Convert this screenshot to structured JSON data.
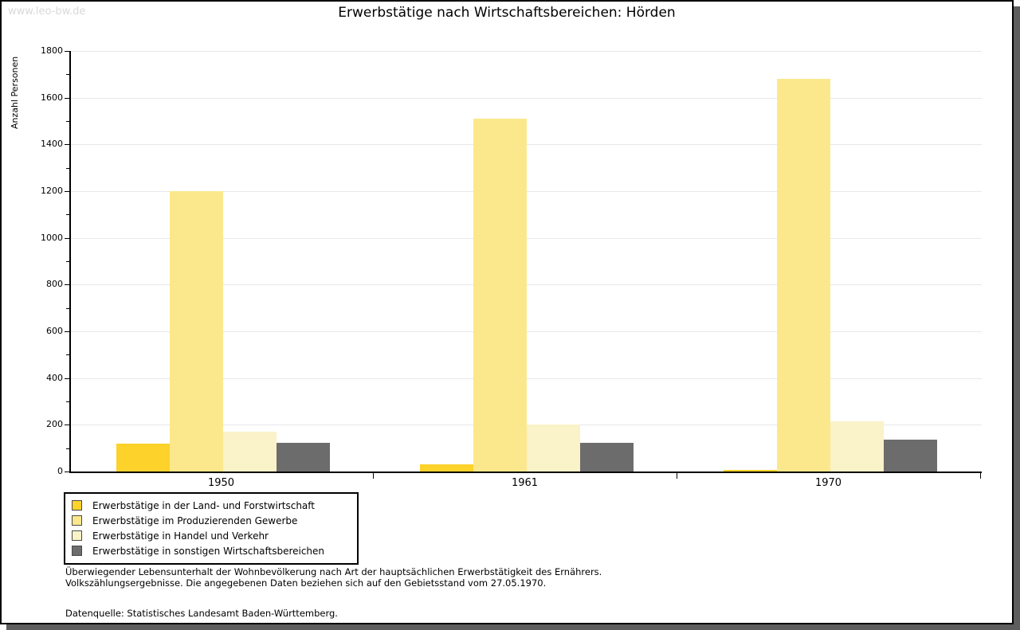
{
  "watermark": "www.leo-bw.de",
  "title": "Erwerbstätige nach Wirtschaftsbereichen: Hörden",
  "chart_data": {
    "type": "bar",
    "title": "Erwerbstätige nach Wirtschaftsbereichen: Hörden",
    "xlabel": "",
    "ylabel": "Anzahl Personen",
    "categories": [
      "1950",
      "1961",
      "1970"
    ],
    "series": [
      {
        "name": "Erwerbstätige in der Land- und Forstwirtschaft",
        "color": "#fcd22b",
        "values": [
          120,
          30,
          7
        ]
      },
      {
        "name": "Erwerbstätige im Produzierenden Gewerbe",
        "color": "#fce88c",
        "values": [
          1200,
          1510,
          1680
        ]
      },
      {
        "name": "Erwerbstätige in Handel und Verkehr",
        "color": "#faf2c8",
        "values": [
          172,
          200,
          215
        ]
      },
      {
        "name": "Erwerbstätige in sonstigen Wirtschaftsbereichen",
        "color": "#6c6c6c",
        "values": [
          122,
          122,
          137
        ]
      }
    ],
    "ylim": [
      0,
      1800
    ],
    "ytick_step": 200,
    "ytick_minor_step": 100,
    "grid": true,
    "legend_position": "bottom-left"
  },
  "footnotes": {
    "line1": "Überwiegender Lebensunterhalt der Wohnbevölkerung nach Art der hauptsächlichen Erwerbstätigkeit des Ernährers.",
    "line2": "Volkszählungsergebnisse. Die angegebenen Daten beziehen sich auf den Gebietsstand vom 27.05.1970.",
    "source": "Datenquelle: Statistisches Landesamt Baden-Württemberg."
  },
  "colors": {
    "gridline": "#e8e8e8",
    "axis": "#000000",
    "watermark": "#d9d9d9",
    "shadow": "#5e5e5e"
  }
}
